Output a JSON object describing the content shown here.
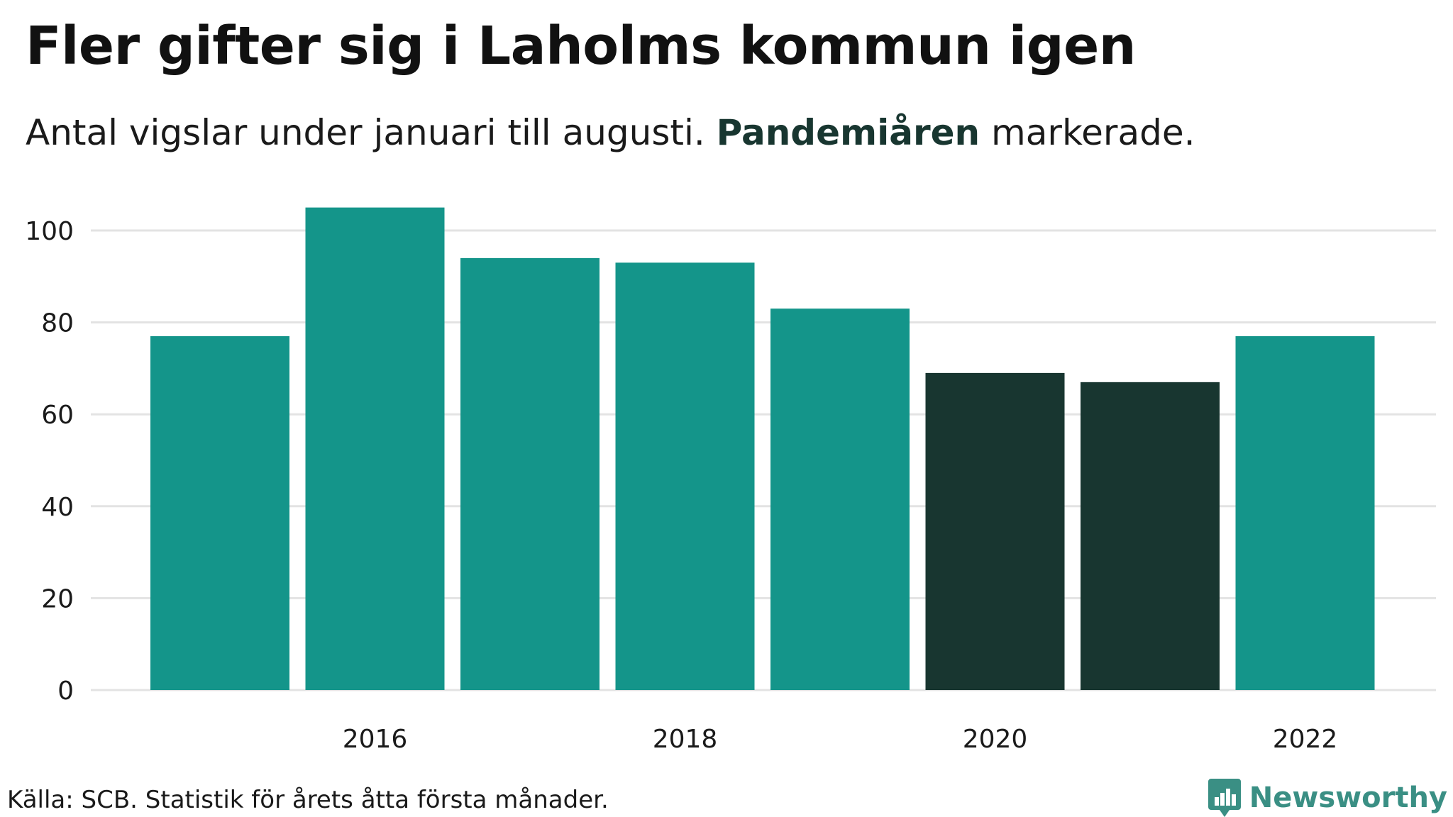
{
  "header": {
    "title": "Fler gifter sig i Laholms kommun igen",
    "subtitle_before": "Antal vigslar under januari till augusti. ",
    "subtitle_highlight": "Pandemiåren",
    "subtitle_after": " markerade."
  },
  "footer": {
    "source": "Källa: SCB. Statistik för årets åtta första månader.",
    "brand": "Newsworthy",
    "brand_icon": "bar-chart-speech-bubble-icon"
  },
  "colors": {
    "bar": "#14958a",
    "bar_highlight": "#183630",
    "highlight_text": "#183630",
    "brand": "#3a8f84",
    "grid": "#e3e3e3"
  },
  "chart_data": {
    "type": "bar",
    "title": "Fler gifter sig i Laholms kommun igen",
    "subtitle": "Antal vigslar under januari till augusti. Pandemiåren markerade.",
    "xlabel": "",
    "ylabel": "",
    "categories": [
      "2015",
      "2016",
      "2017",
      "2018",
      "2019",
      "2020",
      "2021",
      "2022"
    ],
    "values": [
      77,
      105,
      94,
      93,
      83,
      69,
      67,
      77
    ],
    "highlighted": [
      "2020",
      "2021"
    ],
    "x_tick_labels": [
      "2016",
      "2018",
      "2020",
      "2022"
    ],
    "y_ticks": [
      0,
      20,
      40,
      60,
      80,
      100
    ],
    "ylim": [
      0,
      110
    ],
    "grid": true,
    "legend": "none"
  }
}
